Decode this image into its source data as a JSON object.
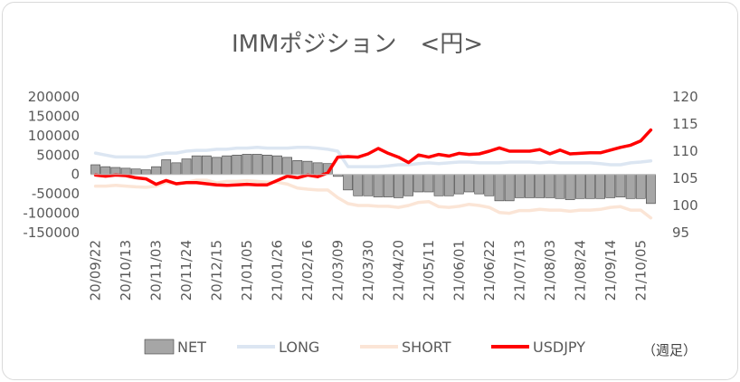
{
  "chart_data": {
    "type": "bar+line",
    "title": "IMMポジション　<円>",
    "note": "（週足）",
    "x_axis_note_unit": "week",
    "y_left": {
      "ylim": [
        -150000,
        200000
      ],
      "ticks": [
        200000,
        150000,
        100000,
        50000,
        0,
        -50000,
        -100000,
        -150000
      ]
    },
    "y_right": {
      "ylim": [
        95,
        120
      ],
      "ticks": [
        120,
        115,
        110,
        105,
        100,
        95
      ]
    },
    "x": [
      "20/09/22",
      "20/09/29",
      "20/10/06",
      "20/10/13",
      "20/10/20",
      "20/10/27",
      "20/11/03",
      "20/11/10",
      "20/11/17",
      "20/11/24",
      "20/12/01",
      "20/12/08",
      "20/12/15",
      "20/12/22",
      "20/12/29",
      "21/01/05",
      "21/01/12",
      "21/01/19",
      "21/01/26",
      "21/02/02",
      "21/02/09",
      "21/02/16",
      "21/02/23",
      "21/03/02",
      "21/03/09",
      "21/03/16",
      "21/03/23",
      "21/03/30",
      "21/04/06",
      "21/04/13",
      "21/04/20",
      "21/04/27",
      "21/05/04",
      "21/05/11",
      "21/05/18",
      "21/05/25",
      "21/06/01",
      "21/06/08",
      "21/06/15",
      "21/06/22",
      "21/06/29",
      "21/07/06",
      "21/07/13",
      "21/07/20",
      "21/07/27",
      "21/08/03",
      "21/08/10",
      "21/08/17",
      "21/08/24",
      "21/08/31",
      "21/09/07",
      "21/09/14",
      "21/09/21",
      "21/09/28",
      "21/10/05",
      "21/10/12"
    ],
    "x_tick_labels": [
      "20/09/22",
      "20/10/13",
      "20/11/03",
      "20/11/24",
      "20/12/15",
      "21/01/05",
      "21/01/26",
      "21/02/16",
      "21/03/09",
      "21/03/30",
      "21/04/20",
      "21/05/11",
      "21/06/01",
      "21/06/22",
      "21/07/13",
      "21/08/03",
      "21/08/24",
      "21/09/14",
      "21/10/05"
    ],
    "series": [
      {
        "name": "NET",
        "axis": "left",
        "kind": "bar",
        "color": "#a6a6a6",
        "values": [
          25000,
          20000,
          18000,
          16000,
          14000,
          12000,
          20000,
          38000,
          30000,
          40000,
          48000,
          48000,
          44000,
          48000,
          50000,
          52000,
          52000,
          50000,
          48000,
          44000,
          36000,
          34000,
          30000,
          28000,
          -5000,
          -40000,
          -55000,
          -55000,
          -58000,
          -58000,
          -60000,
          -55000,
          -45000,
          -45000,
          -55000,
          -55000,
          -50000,
          -45000,
          -50000,
          -55000,
          -68000,
          -68000,
          -60000,
          -60000,
          -60000,
          -60000,
          -62000,
          -65000,
          -62000,
          -62000,
          -62000,
          -60000,
          -58000,
          -62000,
          -62000,
          -75000
        ]
      },
      {
        "name": "LONG",
        "axis": "left",
        "kind": "line",
        "color": "#dce6f2",
        "values": [
          55000,
          50000,
          45000,
          45000,
          45000,
          45000,
          50000,
          55000,
          55000,
          60000,
          62000,
          62000,
          65000,
          65000,
          68000,
          68000,
          70000,
          68000,
          68000,
          68000,
          70000,
          70000,
          68000,
          65000,
          60000,
          20000,
          20000,
          20000,
          20000,
          22000,
          25000,
          25000,
          28000,
          30000,
          28000,
          30000,
          32000,
          32000,
          30000,
          30000,
          30000,
          32000,
          32000,
          32000,
          30000,
          32000,
          30000,
          30000,
          30000,
          30000,
          28000,
          25000,
          25000,
          30000,
          32000,
          35000
        ]
      },
      {
        "name": "SHORT",
        "axis": "left",
        "kind": "line",
        "color": "#fbe5d6",
        "values": [
          -30000,
          -30000,
          -28000,
          -30000,
          -32000,
          -33000,
          -30000,
          -20000,
          -25000,
          -20000,
          -15000,
          -15000,
          -22000,
          -18000,
          -18000,
          -16000,
          -18000,
          -20000,
          -20000,
          -25000,
          -35000,
          -38000,
          -40000,
          -40000,
          -60000,
          -75000,
          -80000,
          -80000,
          -82000,
          -82000,
          -85000,
          -80000,
          -72000,
          -70000,
          -83000,
          -85000,
          -82000,
          -77000,
          -80000,
          -85000,
          -98000,
          -100000,
          -93000,
          -93000,
          -90000,
          -92000,
          -92000,
          -95000,
          -92000,
          -92000,
          -90000,
          -85000,
          -83000,
          -92000,
          -92000,
          -112000
        ]
      },
      {
        "name": "USDJPY",
        "axis": "right",
        "kind": "line",
        "color": "#ff0000",
        "values": [
          105.6,
          105.4,
          105.6,
          105.5,
          105.1,
          104.9,
          103.9,
          104.6,
          104.0,
          104.2,
          104.2,
          104.0,
          103.8,
          103.7,
          103.8,
          103.9,
          103.8,
          103.8,
          104.6,
          105.4,
          105.1,
          105.6,
          105.3,
          106.0,
          108.9,
          109.0,
          108.9,
          109.5,
          110.5,
          109.6,
          108.9,
          107.9,
          109.3,
          108.9,
          109.4,
          109.1,
          109.6,
          109.4,
          109.5,
          110.0,
          110.6,
          110.0,
          110.0,
          110.0,
          110.3,
          109.5,
          110.2,
          109.5,
          109.6,
          109.7,
          109.7,
          110.2,
          110.7,
          111.1,
          111.9,
          113.9
        ]
      }
    ],
    "legend": {
      "position": "bottom",
      "entries": [
        "NET",
        "LONG",
        "SHORT",
        "USDJPY"
      ]
    },
    "grid": false
  }
}
